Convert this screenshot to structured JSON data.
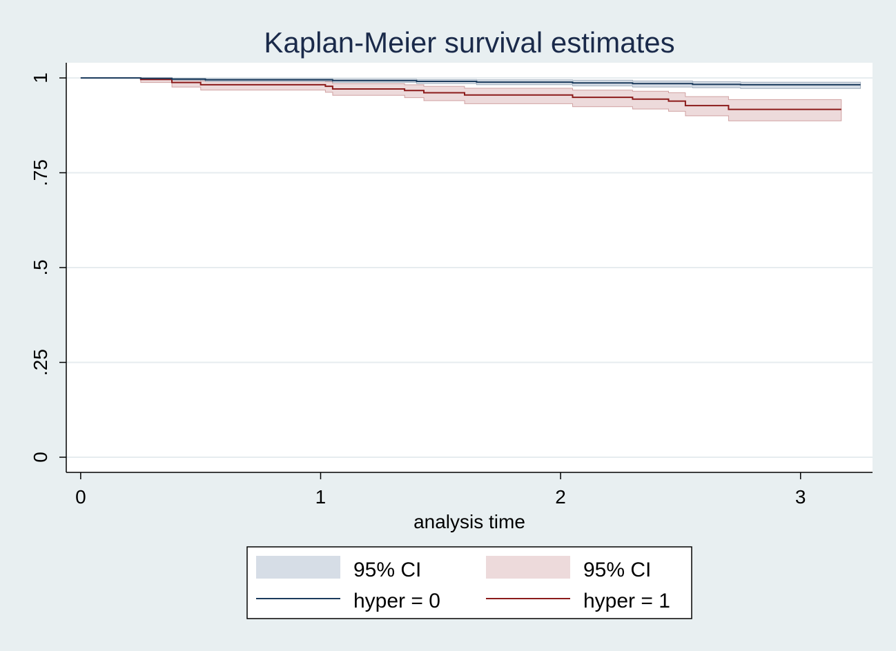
{
  "chart_data": {
    "type": "line",
    "title": "Kaplan-Meier survival estimates",
    "xlabel": "analysis time",
    "ylabel": "",
    "xlim": [
      -0.06,
      3.3
    ],
    "ylim": [
      -0.04,
      1.04
    ],
    "x_ticks": [
      0,
      1,
      2,
      3
    ],
    "x_tick_labels": [
      "0",
      "1",
      "2",
      "3"
    ],
    "y_ticks": [
      0,
      0.25,
      0.5,
      0.75,
      1
    ],
    "y_tick_labels": [
      "0",
      ".25",
      ".5",
      ".75",
      "1"
    ],
    "grid": "horizontal",
    "legend_position": "bottom",
    "series": [
      {
        "name": "hyper = 0",
        "ci_label": "95% CI",
        "color": "#1a3a5c",
        "ci_color": "#d6dde6",
        "steps": [
          [
            0,
            1.0
          ],
          [
            0.25,
            0.999
          ],
          [
            0.38,
            0.997
          ],
          [
            0.52,
            0.995
          ],
          [
            1.05,
            0.993
          ],
          [
            1.4,
            0.991
          ],
          [
            1.65,
            0.989
          ],
          [
            2.05,
            0.987
          ],
          [
            2.3,
            0.985
          ],
          [
            2.55,
            0.983
          ],
          [
            2.75,
            0.982
          ],
          [
            3.25,
            0.982
          ]
        ],
        "ci_lower": [
          [
            0,
            1.0
          ],
          [
            0.25,
            0.997
          ],
          [
            0.38,
            0.994
          ],
          [
            0.52,
            0.991
          ],
          [
            1.05,
            0.988
          ],
          [
            1.4,
            0.985
          ],
          [
            1.65,
            0.982
          ],
          [
            2.05,
            0.979
          ],
          [
            2.3,
            0.976
          ],
          [
            2.55,
            0.974
          ],
          [
            2.75,
            0.972
          ],
          [
            3.25,
            0.972
          ]
        ],
        "ci_upper": [
          [
            0,
            1.0
          ],
          [
            0.25,
            1.0
          ],
          [
            0.38,
            0.999
          ],
          [
            0.52,
            0.998
          ],
          [
            1.05,
            0.997
          ],
          [
            1.4,
            0.996
          ],
          [
            1.65,
            0.995
          ],
          [
            2.05,
            0.994
          ],
          [
            2.3,
            0.992
          ],
          [
            2.55,
            0.99
          ],
          [
            2.75,
            0.989
          ],
          [
            3.25,
            0.989
          ]
        ]
      },
      {
        "name": "hyper = 1",
        "ci_label": "95% CI",
        "color": "#8b1a1a",
        "ci_color": "#eddadb",
        "steps": [
          [
            0,
            1.0
          ],
          [
            0.25,
            0.996
          ],
          [
            0.38,
            0.988
          ],
          [
            0.5,
            0.982
          ],
          [
            1.02,
            0.978
          ],
          [
            1.05,
            0.971
          ],
          [
            1.35,
            0.967
          ],
          [
            1.43,
            0.961
          ],
          [
            1.6,
            0.955
          ],
          [
            2.05,
            0.949
          ],
          [
            2.3,
            0.944
          ],
          [
            2.45,
            0.939
          ],
          [
            2.52,
            0.927
          ],
          [
            2.7,
            0.917
          ],
          [
            3.17,
            0.917
          ]
        ],
        "ci_lower": [
          [
            0,
            1.0
          ],
          [
            0.25,
            0.988
          ],
          [
            0.38,
            0.976
          ],
          [
            0.5,
            0.968
          ],
          [
            1.02,
            0.962
          ],
          [
            1.05,
            0.954
          ],
          [
            1.35,
            0.948
          ],
          [
            1.43,
            0.94
          ],
          [
            1.6,
            0.932
          ],
          [
            2.05,
            0.924
          ],
          [
            2.3,
            0.918
          ],
          [
            2.45,
            0.912
          ],
          [
            2.52,
            0.9
          ],
          [
            2.7,
            0.887
          ],
          [
            3.17,
            0.887
          ]
        ],
        "ci_upper": [
          [
            0,
            1.0
          ],
          [
            0.25,
            1.0
          ],
          [
            0.38,
            0.995
          ],
          [
            0.5,
            0.992
          ],
          [
            1.02,
            0.99
          ],
          [
            1.05,
            0.985
          ],
          [
            1.35,
            0.982
          ],
          [
            1.43,
            0.978
          ],
          [
            1.6,
            0.973
          ],
          [
            2.05,
            0.968
          ],
          [
            2.3,
            0.965
          ],
          [
            2.45,
            0.961
          ],
          [
            2.52,
            0.951
          ],
          [
            2.7,
            0.943
          ],
          [
            3.17,
            0.943
          ]
        ]
      }
    ],
    "legend": [
      {
        "label": "95% CI",
        "kind": "band",
        "color": "#d6dde6"
      },
      {
        "label": "95% CI",
        "kind": "band",
        "color": "#eddadb"
      },
      {
        "label": "hyper = 0",
        "kind": "line",
        "color": "#1a3a5c"
      },
      {
        "label": "hyper = 1",
        "kind": "line",
        "color": "#8b1a1a"
      }
    ]
  }
}
